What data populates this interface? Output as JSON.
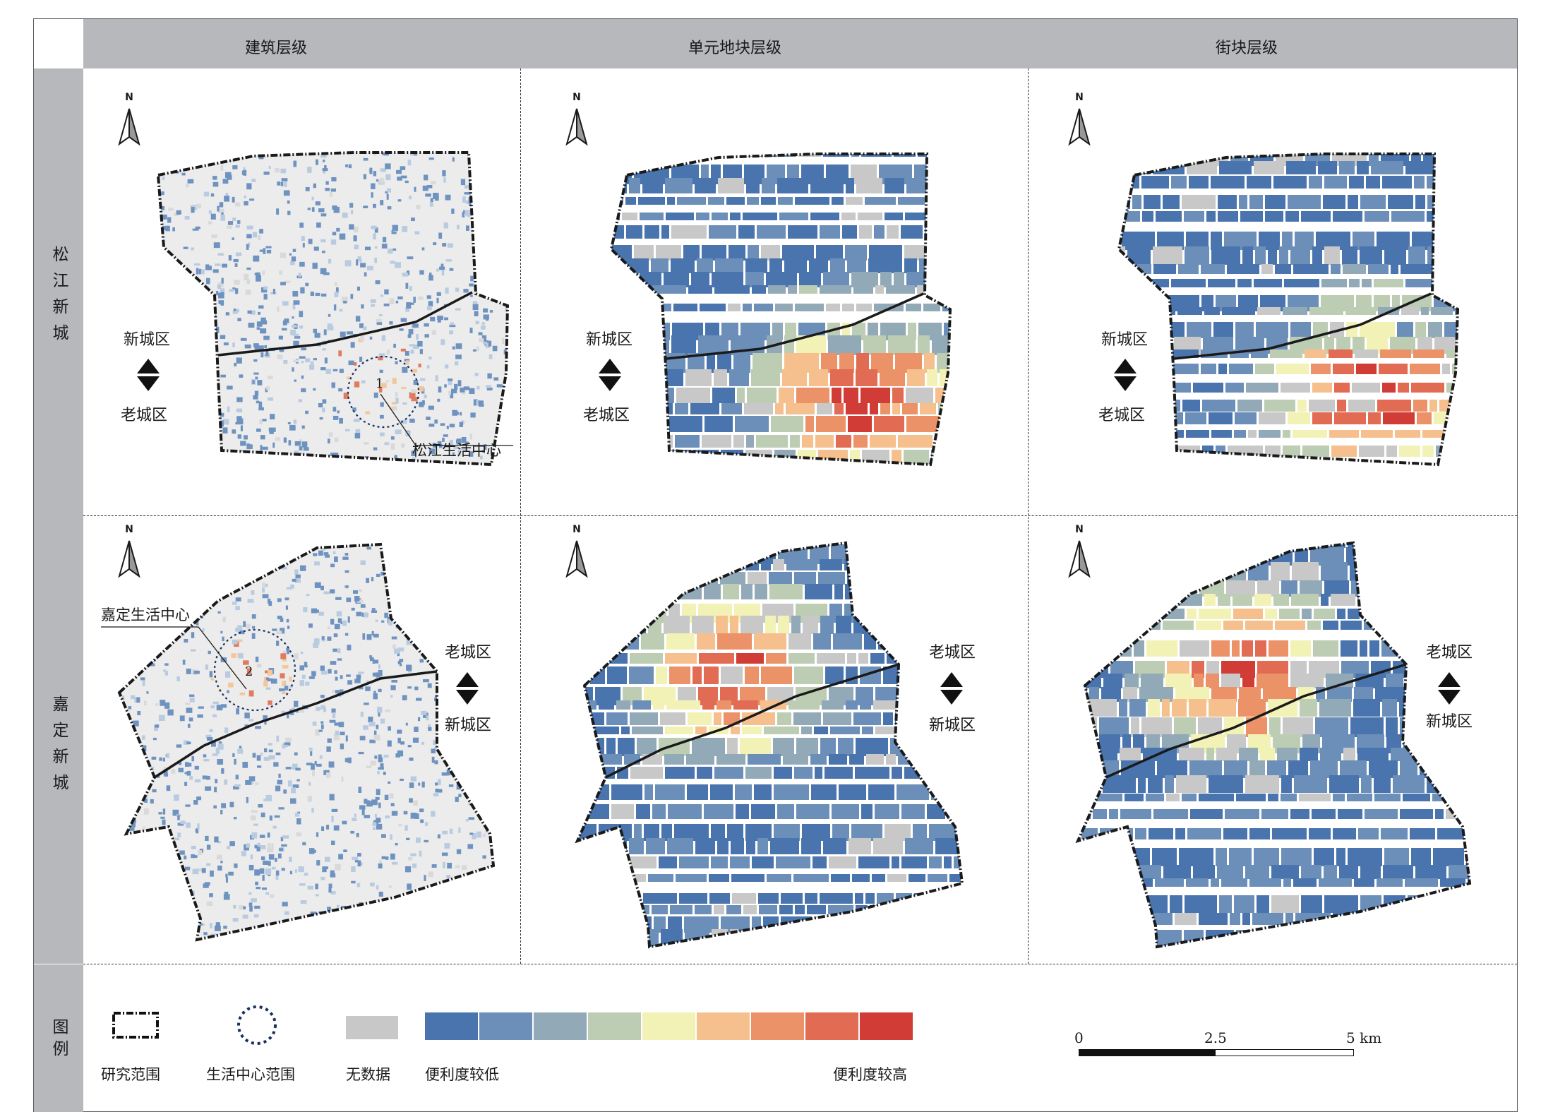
{
  "headers": {
    "columns": [
      "建筑层级",
      "单元地块层级",
      "街块层级"
    ],
    "rows": [
      "松江新城",
      "嘉定新城"
    ],
    "legend_row": "图例"
  },
  "map_labels": {
    "north": "N",
    "new_district": "新城区",
    "old_district": "老城区",
    "songjiang_center": "松江生活中心",
    "jiading_center": "嘉定生活中心",
    "marker_1": "1",
    "marker_2": "2"
  },
  "legend": {
    "study_area": "研究范围",
    "life_center": "生活中心范围",
    "no_data": "无数据",
    "low": "便利度较低",
    "high": "便利度较高",
    "no_data_color": "#c8c8c8",
    "ramp_colors": [
      "#4a74ad",
      "#6b8fb8",
      "#92a9b8",
      "#bccdb4",
      "#f3f2b6",
      "#f5c08d",
      "#ec9268",
      "#e16b53",
      "#d13c36"
    ]
  },
  "scale_bar": {
    "ticks": [
      "0",
      "2.5",
      "5 km"
    ]
  }
}
